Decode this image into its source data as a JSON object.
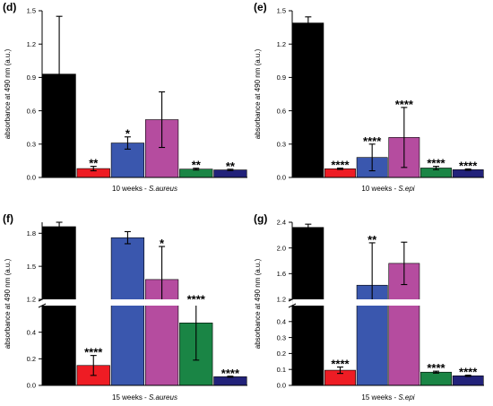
{
  "chart_data": [
    {
      "type": "bar",
      "panel_label": "(d)",
      "xlabel_prefix": "10 weeks - ",
      "xlabel_species": "S.aureus",
      "ylabel": "absorbance at 490 nm (a.u.)",
      "ylim": [
        0,
        1.5
      ],
      "yticks": [
        "0.0",
        "0.3",
        "0.6",
        "0.9",
        "1.2",
        "1.5"
      ],
      "values": [
        0.93,
        0.08,
        0.31,
        0.52,
        0.075,
        0.068
      ],
      "errors": [
        0.52,
        0.02,
        0.055,
        0.25,
        0.008,
        0.006
      ],
      "significance": [
        "",
        "**",
        "*",
        "",
        "**",
        "**"
      ]
    },
    {
      "type": "bar",
      "panel_label": "(e)",
      "xlabel_prefix": "10 weeks - ",
      "xlabel_species": "S.epi",
      "ylabel": "absorbance at 490 nm (a.u.)",
      "ylim": [
        0,
        1.5
      ],
      "yticks": [
        "0.0",
        "0.3",
        "0.6",
        "0.9",
        "1.2",
        "1.5"
      ],
      "values": [
        1.39,
        0.078,
        0.18,
        0.36,
        0.085,
        0.07
      ],
      "errors": [
        0.055,
        0.006,
        0.12,
        0.27,
        0.015,
        0.006
      ],
      "significance": [
        "",
        "****",
        "****",
        "****",
        "****",
        "****"
      ]
    },
    {
      "type": "bar",
      "panel_label": "(f)",
      "xlabel_prefix": "15 weeks - ",
      "xlabel_species": "S.aureus",
      "ylabel": "absorbance at 490 nm (a.u.)",
      "axis_break": true,
      "lower_ylim": [
        0,
        0.6
      ],
      "lower_yticks": [
        "0.0",
        "0.2",
        "0.4"
      ],
      "upper_ylim": [
        1.2,
        1.9
      ],
      "upper_yticks": [
        "1.2",
        "1.5",
        "1.8"
      ],
      "values": [
        1.86,
        0.15,
        1.76,
        1.38,
        0.47,
        0.065
      ],
      "errors": [
        0.04,
        0.075,
        0.055,
        0.3,
        0.28,
        0.004
      ],
      "significance": [
        "",
        "****",
        "",
        "*",
        "****",
        "****"
      ]
    },
    {
      "type": "bar",
      "panel_label": "(g)",
      "xlabel_prefix": "15 weeks - ",
      "xlabel_species": "S.epi",
      "ylabel": "absorbance at 490 nm (a.u.)",
      "axis_break": true,
      "lower_ylim": [
        0,
        0.5
      ],
      "lower_yticks": [
        "0.0",
        "0.1",
        "0.2",
        "0.3",
        "0.4"
      ],
      "upper_ylim": [
        1.2,
        2.4
      ],
      "upper_yticks": [
        "1.2",
        "1.6",
        "2.0",
        "2.4"
      ],
      "values": [
        2.32,
        0.095,
        1.42,
        1.76,
        0.083,
        0.06
      ],
      "errors": [
        0.05,
        0.02,
        0.66,
        0.33,
        0.006,
        0.004
      ],
      "significance": [
        "",
        "****",
        "**",
        "",
        "****",
        "****"
      ]
    }
  ],
  "colors": {
    "bars": [
      "#000000",
      "#ee1c24",
      "#3a57ae",
      "#b54c9f",
      "#1a8545",
      "#22227a"
    ],
    "error_bar": "#000000"
  }
}
